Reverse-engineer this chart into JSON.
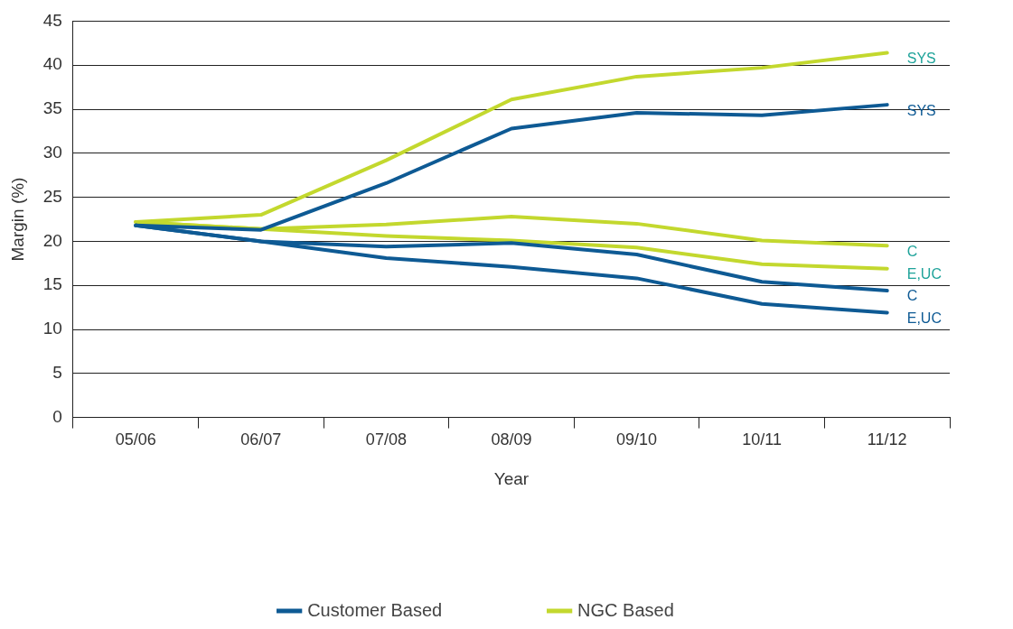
{
  "chart_data": {
    "type": "line",
    "xlabel": "Year",
    "ylabel": "Margin (%)",
    "categories": [
      "05/06",
      "06/07",
      "07/08",
      "08/09",
      "09/10",
      "10/11",
      "11/12"
    ],
    "series": [
      {
        "name": "Customer Based",
        "color": "#0e5a94",
        "values": [
          21.8,
          21.3,
          26.6,
          32.8,
          34.6,
          34.3,
          35.5
        ]
      },
      {
        "color": "#0e5a94",
        "values": [
          21.8,
          20.0,
          19.4,
          19.8,
          18.5,
          15.4,
          14.4
        ]
      },
      {
        "color": "#0e5a94",
        "values": [
          21.8,
          20.0,
          18.1,
          17.1,
          15.8,
          12.9,
          11.9
        ]
      },
      {
        "name": "NGC Based",
        "color": "#c3d82e",
        "values": [
          22.2,
          23.0,
          29.2,
          36.1,
          38.7,
          39.7,
          41.4
        ]
      },
      {
        "color": "#c3d82e",
        "values": [
          22.2,
          21.4,
          21.9,
          22.8,
          22.0,
          20.1,
          19.5
        ]
      },
      {
        "color": "#c3d82e",
        "values": [
          22.2,
          21.4,
          20.6,
          20.1,
          19.3,
          17.4,
          16.9
        ]
      }
    ],
    "annotations": [
      {
        "text": "SYS",
        "x": "11/12",
        "y": 41.4
      },
      {
        "text": "SYS",
        "x": "11/12",
        "y": 35.5
      },
      {
        "text": "C",
        "x": "11/12",
        "y": 19.5
      },
      {
        "text": "E,UC",
        "x": "11/12",
        "y": 16.9
      },
      {
        "text": "C",
        "x": "11/12",
        "y": 14.4
      },
      {
        "text": "E,UC",
        "x": "11/12",
        "y": 11.9
      }
    ],
    "ylim": [
      0,
      45
    ],
    "yticks": [
      0,
      5,
      10,
      15,
      20,
      25,
      30,
      35,
      40,
      45
    ],
    "grid": "y",
    "legend": "bottom",
    "marker": "none"
  }
}
